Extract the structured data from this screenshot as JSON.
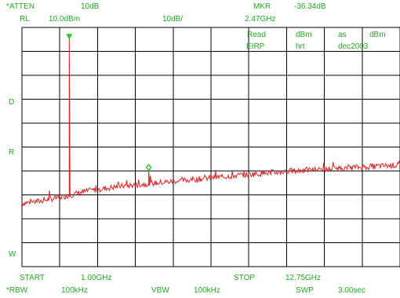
{
  "header": {
    "atten_label": "*ATTEN",
    "atten_value": "10dB",
    "mkr_label": "MKR",
    "mkr_value": "-36.34dB",
    "rl_label": "RL",
    "rl_value": "10.0dBm",
    "scale": "10dB/",
    "mkr_freq": "2.47GHz"
  },
  "screen_labels": {
    "read": "Read",
    "eirp": "EIRP",
    "dbm1": "dBm",
    "hrt": "hrt",
    "as": "as",
    "dec": "dec2003",
    "dbm2": "dBm"
  },
  "side_labels": {
    "d": "D",
    "r": "R",
    "w": "W"
  },
  "footer": {
    "start_label": "START",
    "start_value": "1.00GHz",
    "stop_label": "STOP",
    "stop_value": "12.75GHz",
    "rbw_label": "*RBW",
    "rbw_value": "100kHz",
    "vbw_label": "VBW",
    "vbw_value": "100kHz",
    "swp_label": "SWP",
    "swp_value": "3.00sec"
  },
  "colors": {
    "trace": "#dd2222",
    "marker": "#22cc22",
    "grid": "#000000",
    "text": "#22aa22"
  },
  "chart_data": {
    "type": "line",
    "title": "",
    "xlabel": "",
    "ylabel": "",
    "x_unit": "GHz",
    "y_unit": "dBm",
    "xlim": [
      1.0,
      12.75
    ],
    "ylim": [
      -90.0,
      10.0
    ],
    "grid": true,
    "noise_floor": [
      {
        "x": 1.0,
        "y": -63.5
      },
      {
        "x": 1.6,
        "y": -62.5
      },
      {
        "x": 2.2,
        "y": -61.0
      },
      {
        "x": 3.0,
        "y": -58.5
      },
      {
        "x": 4.0,
        "y": -56.5
      },
      {
        "x": 6.0,
        "y": -54.0
      },
      {
        "x": 8.0,
        "y": -51.5
      },
      {
        "x": 10.0,
        "y": -49.5
      },
      {
        "x": 12.75,
        "y": -47.5
      }
    ],
    "peaks": [
      {
        "x": 2.47,
        "y": 6.0,
        "base": -59.5
      },
      {
        "x": 4.94,
        "y": -49.5,
        "base": -56.0
      }
    ],
    "markers": [
      {
        "x": 2.47,
        "y": 6.0,
        "shape": "triangle"
      },
      {
        "x": 4.94,
        "y": -48.5,
        "shape": "diamond"
      }
    ]
  }
}
